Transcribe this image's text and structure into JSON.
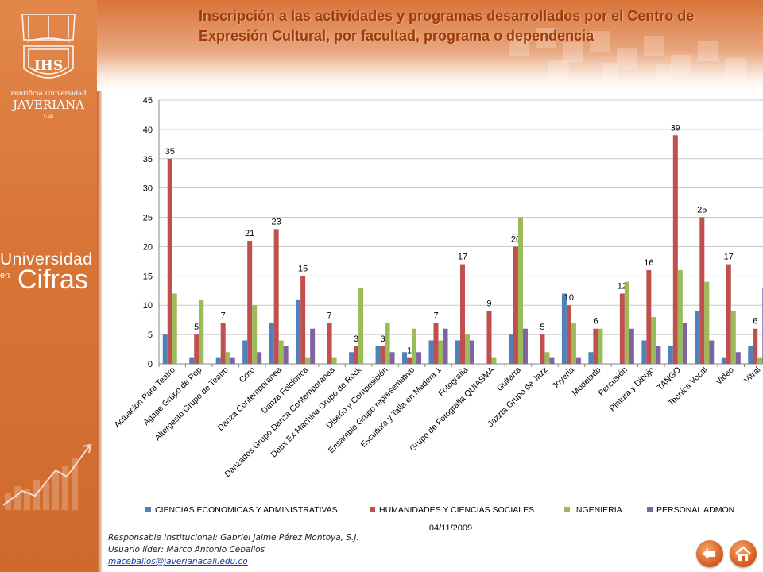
{
  "title_line1": "Inscripción a las actividades y programas desarrollados por el Centro de",
  "title_line2": "Expresión Cultural, por facultad, programa o dependencia",
  "logo": {
    "text": "IHS",
    "line1": "Pontificia Universidad",
    "line2": "JAVERIANA",
    "line3": "Cali"
  },
  "brand": {
    "line1": "Universidad",
    "line2": "en",
    "line3": "Cifras"
  },
  "colors": {
    "sidebar": "#d77436",
    "title": "#9e3b08",
    "accent": "#d2591b"
  },
  "chart_data": {
    "type": "bar",
    "ylim": [
      0,
      45
    ],
    "yticks": [
      0,
      5,
      10,
      15,
      20,
      25,
      30,
      35,
      40,
      45
    ],
    "grid": true,
    "legend_position": "bottom",
    "categories": [
      "Actuacion Para Teatro",
      "Agape Grupo de Pop",
      "Altergesto Grupo de Teatro",
      "Coro",
      "Danza Contemporanea",
      "Danza Folclorica",
      "Danzados Grupo Danza Contemporánea",
      "Deux Ex Machina Grupo de Rock",
      "Diseño y Composición",
      "Ensamble Grupo representativo",
      "Escultura y Talla en Madera 1",
      "Fotografia",
      "Grupo de Fotografia QUIASMA",
      "Guitarra",
      "Jazzta Grupo de Jazz",
      "Joyeria",
      "Modelado",
      "Percusión",
      "Pintura y Dibujo",
      "TANGO",
      "Tecnica Vocal",
      "Video",
      "Vitral"
    ],
    "series": [
      {
        "name": "CIENCIAS ECONOMICAS Y ADMINISTRATIVAS",
        "color": "#4f81bd",
        "values": [
          5,
          1,
          1,
          4,
          7,
          11,
          0,
          2,
          3,
          2,
          4,
          4,
          0,
          5,
          0,
          12,
          2,
          0,
          4,
          3,
          9,
          1,
          3
        ]
      },
      {
        "name": "HUMANIDADES Y CIENCIAS SOCIALES",
        "color": "#c0504d",
        "values": [
          35,
          5,
          7,
          21,
          23,
          15,
          7,
          3,
          3,
          1,
          7,
          17,
          9,
          20,
          5,
          10,
          6,
          12,
          16,
          39,
          25,
          17,
          6
        ]
      },
      {
        "name": "INGENIERIA",
        "color": "#9bbb59",
        "values": [
          12,
          11,
          2,
          10,
          4,
          1,
          1,
          13,
          7,
          6,
          4,
          5,
          1,
          25,
          2,
          7,
          6,
          14,
          8,
          16,
          14,
          9,
          1
        ]
      },
      {
        "name": "PERSONAL ADMON",
        "color": "#8064a2",
        "values": [
          0,
          0,
          1,
          2,
          3,
          6,
          0,
          0,
          2,
          2,
          6,
          4,
          0,
          6,
          1,
          1,
          0,
          6,
          3,
          7,
          4,
          2,
          13
        ]
      }
    ],
    "data_labels_series": 1,
    "date_label": "04/11/2009"
  },
  "footer": {
    "line1": "Responsable Institucional: Gabriel Jaime Pérez Montoya, S.J.",
    "line2": "Usuario líder: Marco Antonio Ceballos",
    "email": "maceballos@javerianacali.edu.co"
  }
}
